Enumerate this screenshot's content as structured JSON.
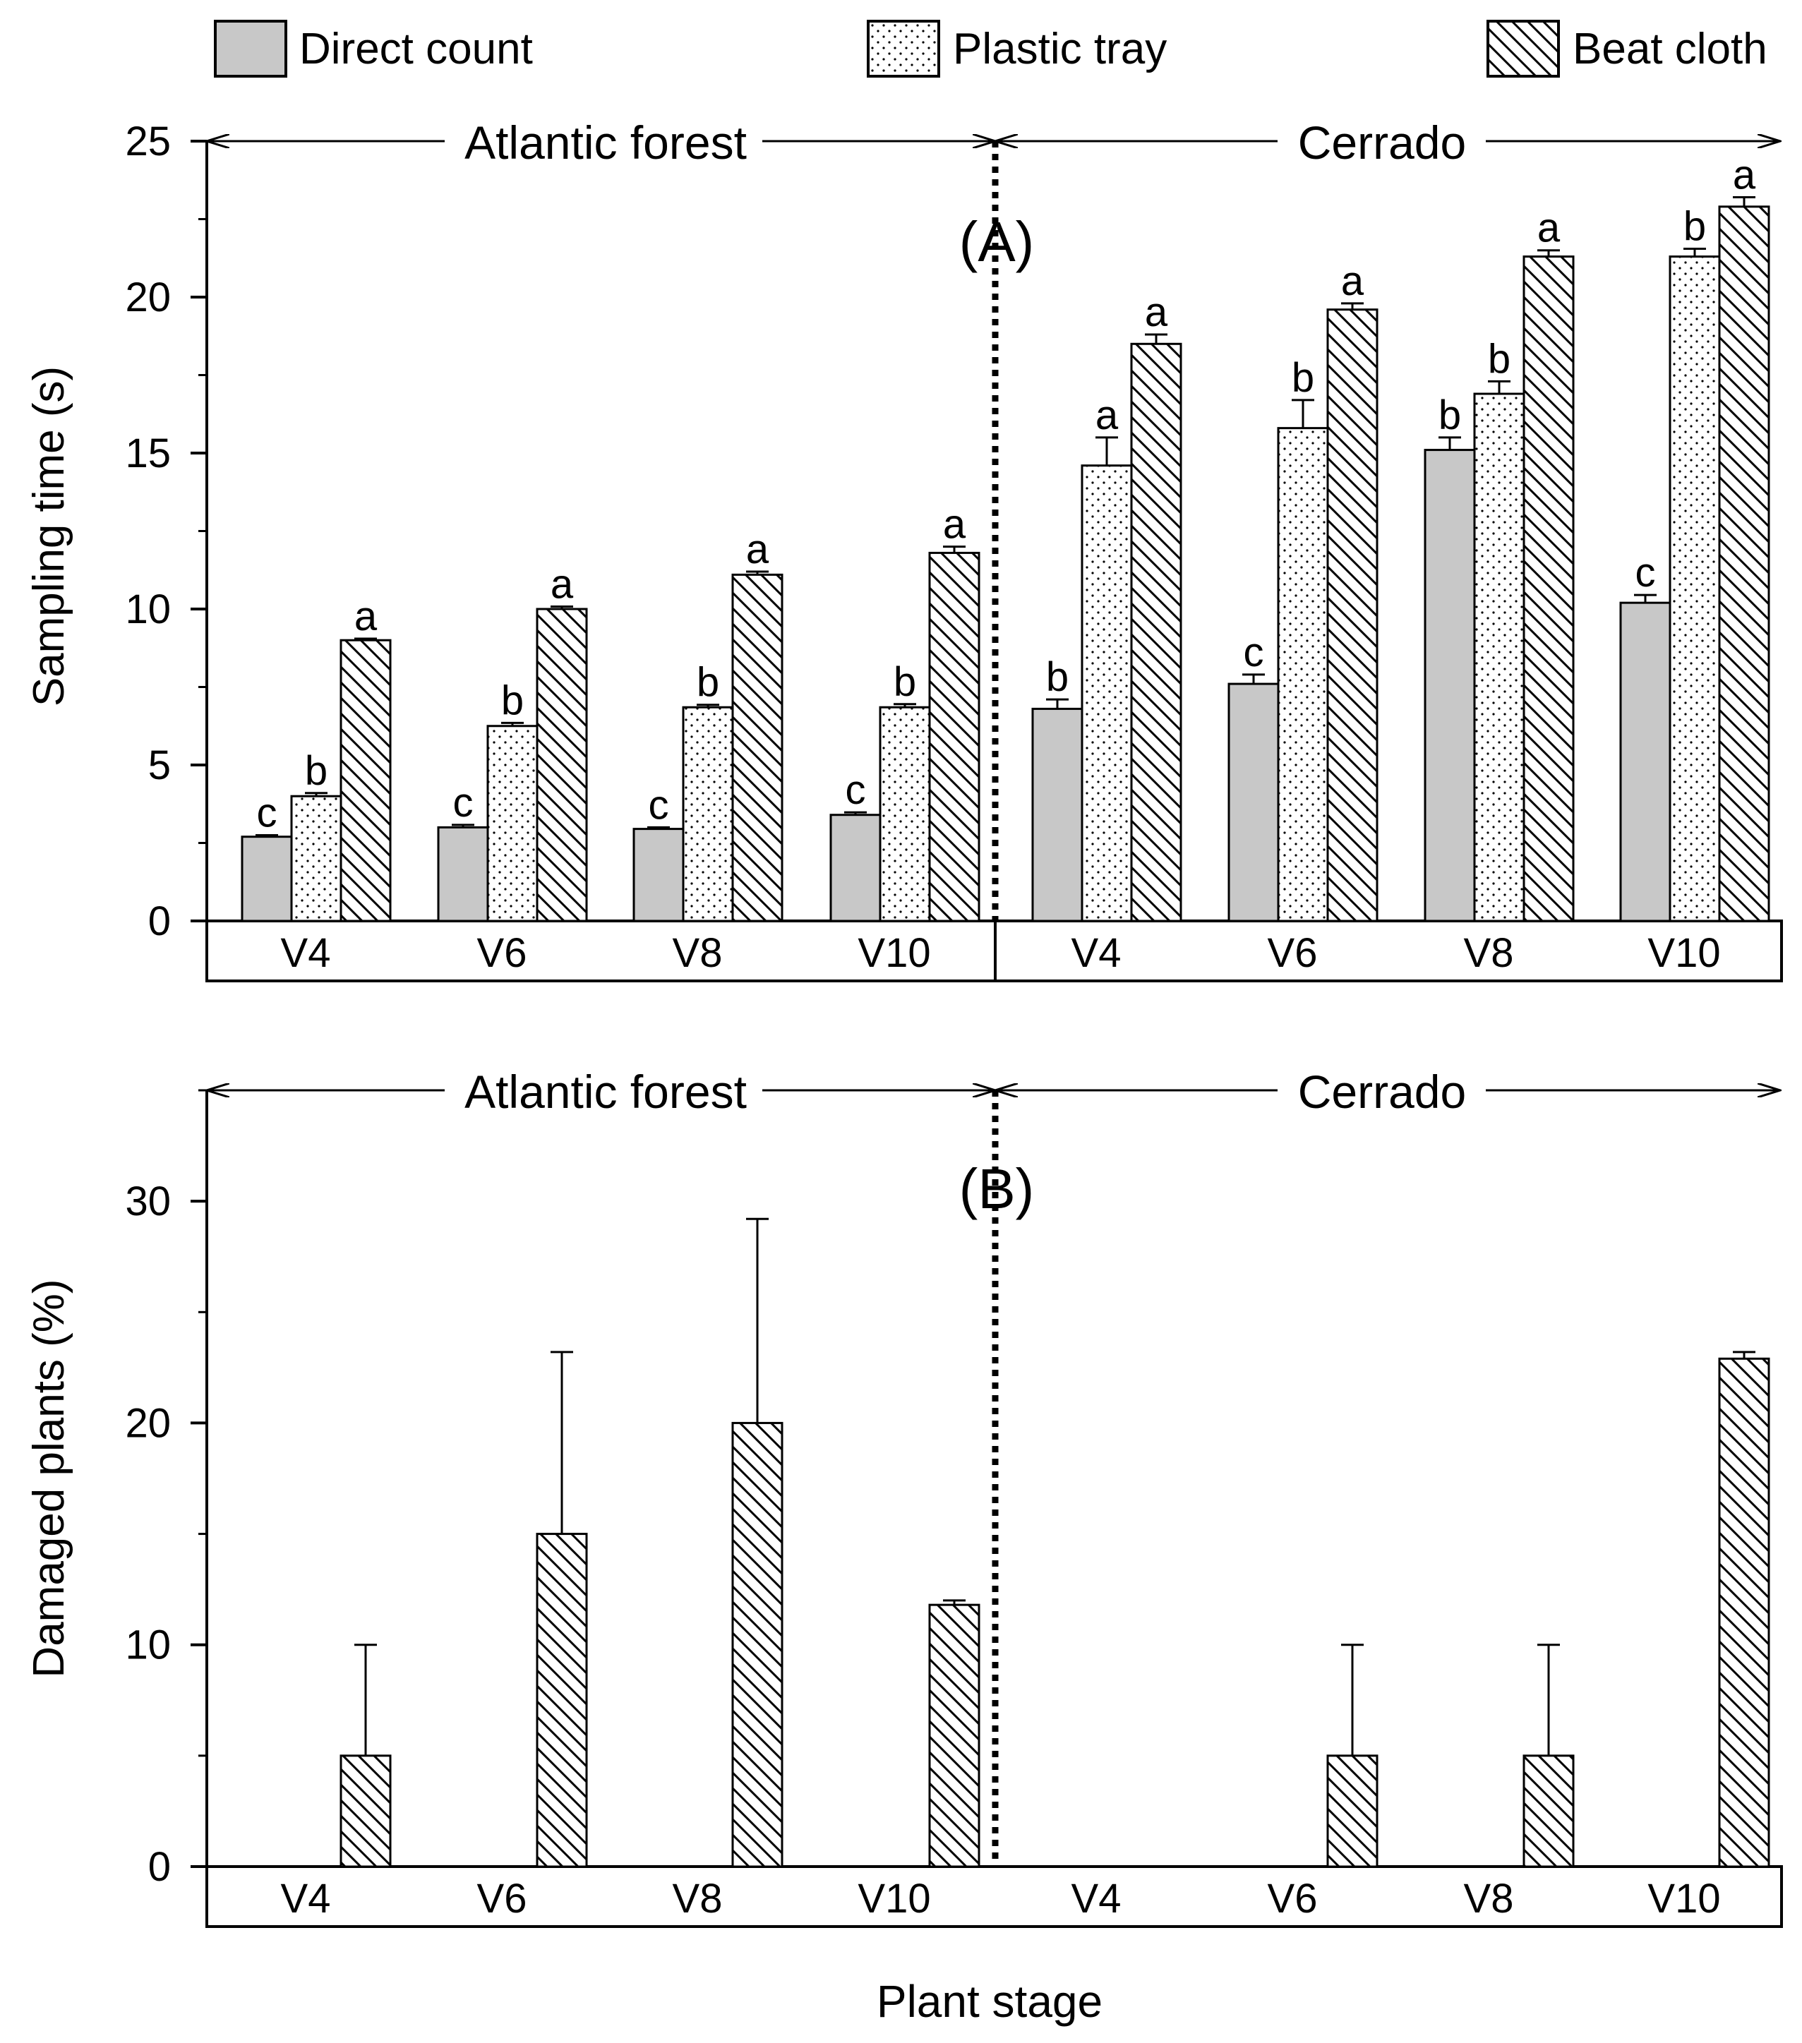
{
  "legend": [
    {
      "name": "Direct count",
      "key": "direct"
    },
    {
      "name": "Plastic tray",
      "key": "tray"
    },
    {
      "name": "Beat cloth",
      "key": "cloth"
    }
  ],
  "xlabel": "Plant stage",
  "colors": {
    "direct": "#c8c8c8",
    "line": "#000000",
    "background": "#ffffff"
  },
  "chart_data": [
    {
      "type": "bar",
      "panel_label": "(A)",
      "ylabel": "Sampling time (s)",
      "ylim": [
        0,
        25
      ],
      "yticks": [
        0,
        5,
        10,
        15,
        20,
        25
      ],
      "regions": [
        "Atlantic forest",
        "Cerrado"
      ],
      "categories": [
        "V4",
        "V6",
        "V8",
        "V10",
        "V4",
        "V6",
        "V8",
        "V10"
      ],
      "series": [
        {
          "name": "Direct count",
          "values": [
            2.7,
            3.0,
            2.95,
            3.4,
            6.8,
            7.6,
            15.1,
            10.2
          ],
          "errors": [
            0.05,
            0.08,
            0.05,
            0.08,
            0.3,
            0.3,
            0.4,
            0.25
          ],
          "letters": [
            "c",
            "c",
            "c",
            "c",
            "b",
            "c",
            "b",
            "c"
          ]
        },
        {
          "name": "Plastic tray",
          "values": [
            4.0,
            6.25,
            6.85,
            6.85,
            14.6,
            15.8,
            16.9,
            21.3
          ],
          "errors": [
            0.1,
            0.1,
            0.08,
            0.1,
            0.9,
            0.9,
            0.4,
            0.25
          ],
          "letters": [
            "b",
            "b",
            "b",
            "b",
            "a",
            "b",
            "b",
            "b"
          ]
        },
        {
          "name": "Beat cloth",
          "values": [
            9.0,
            10.0,
            11.1,
            11.8,
            18.5,
            19.6,
            21.3,
            22.9
          ],
          "errors": [
            0.05,
            0.08,
            0.1,
            0.2,
            0.3,
            0.2,
            0.2,
            0.3
          ],
          "letters": [
            "a",
            "a",
            "a",
            "a",
            "a",
            "a",
            "a",
            "a"
          ]
        }
      ]
    },
    {
      "type": "bar",
      "panel_label": "(B)",
      "ylabel": "Damaged plants (%)",
      "ylim": [
        0,
        35
      ],
      "yticks": [
        0,
        10,
        20,
        30
      ],
      "regions": [
        "Atlantic forest",
        "Cerrado"
      ],
      "categories": [
        "V4",
        "V6",
        "V8",
        "V10",
        "V4",
        "V6",
        "V8",
        "V10"
      ],
      "series": [
        {
          "name": "Beat cloth",
          "values": [
            5,
            15,
            20,
            11.8,
            0,
            5,
            5,
            22.9
          ],
          "errors": [
            5,
            8.2,
            9.2,
            0.2,
            0,
            5,
            5,
            0.3
          ]
        }
      ]
    }
  ]
}
